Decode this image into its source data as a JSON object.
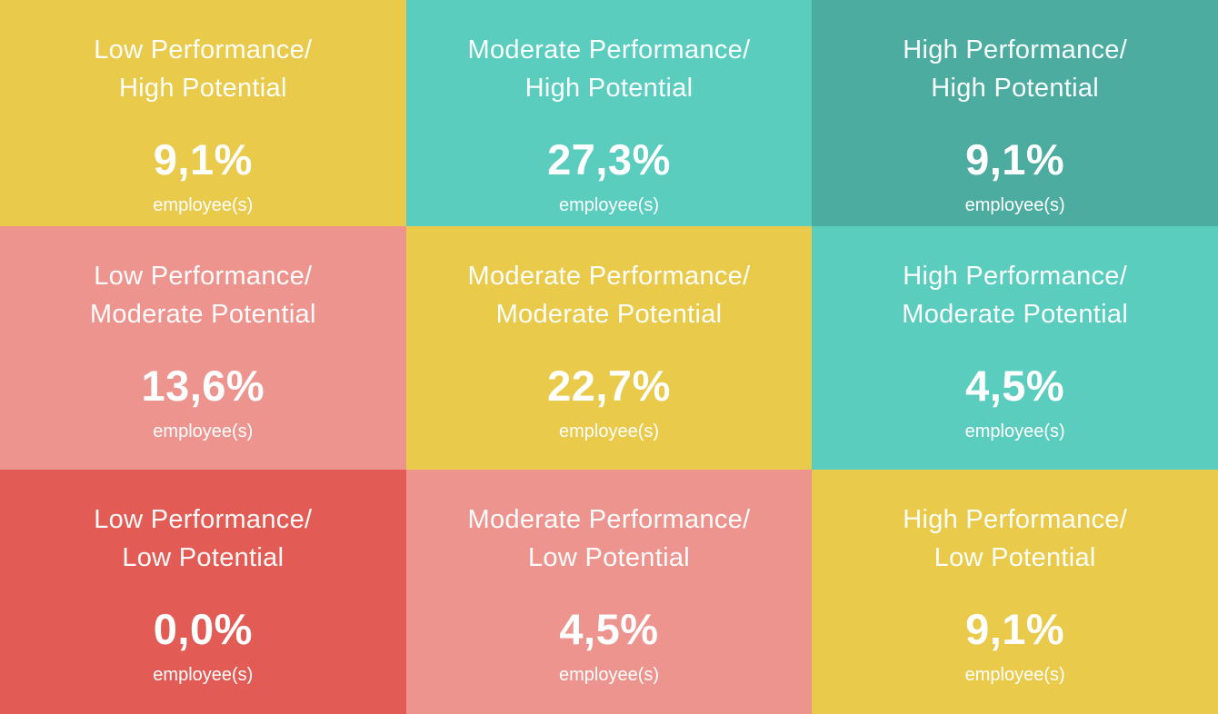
{
  "matrix": {
    "cells": [
      {
        "title_line1": "Low Performance/",
        "title_line2": "High Potential",
        "value": "9,1%",
        "unit": "employee(s)",
        "bg": "#E9CA4B"
      },
      {
        "title_line1": "Moderate Performance/",
        "title_line2": "High Potential",
        "value": "27,3%",
        "unit": "employee(s)",
        "bg": "#5BCDBF"
      },
      {
        "title_line1": "High Performance/",
        "title_line2": "High Potential",
        "value": "9,1%",
        "unit": "employee(s)",
        "bg": "#4DACA0"
      },
      {
        "title_line1": "Low Performance/",
        "title_line2": "Moderate Potential",
        "value": "13,6%",
        "unit": "employee(s)",
        "bg": "#ED948F"
      },
      {
        "title_line1": "Moderate Performance/",
        "title_line2": "Moderate Potential",
        "value": "22,7%",
        "unit": "employee(s)",
        "bg": "#E9CA4B"
      },
      {
        "title_line1": "High Performance/",
        "title_line2": "Moderate Potential",
        "value": "4,5%",
        "unit": "employee(s)",
        "bg": "#5BCDBF"
      },
      {
        "title_line1": "Low Performance/",
        "title_line2": "Low Potential",
        "value": "0,0%",
        "unit": "employee(s)",
        "bg": "#E25B54"
      },
      {
        "title_line1": "Moderate Performance/",
        "title_line2": "Low Potential",
        "value": "4,5%",
        "unit": "employee(s)",
        "bg": "#ED948F"
      },
      {
        "title_line1": "High Performance/",
        "title_line2": "Low Potential",
        "value": "9,1%",
        "unit": "employee(s)",
        "bg": "#E9CA4B"
      }
    ]
  },
  "chart_data": {
    "type": "heatmap",
    "x_categories": [
      "Low Performance",
      "Moderate Performance",
      "High Performance"
    ],
    "y_categories": [
      "High Potential",
      "Moderate Potential",
      "Low Potential"
    ],
    "values": [
      [
        9.1,
        27.3,
        9.1
      ],
      [
        13.6,
        22.7,
        4.5
      ],
      [
        0.0,
        4.5,
        9.1
      ]
    ],
    "value_unit": "% employee(s)",
    "value_labels": [
      [
        "9,1%",
        "27,3%",
        "9,1%"
      ],
      [
        "13,6%",
        "22,7%",
        "4,5%"
      ],
      [
        "0,0%",
        "4,5%",
        "9,1%"
      ]
    ],
    "cell_colors": [
      [
        "#E9CA4B",
        "#5BCDBF",
        "#4DACA0"
      ],
      [
        "#ED948F",
        "#E9CA4B",
        "#5BCDBF"
      ],
      [
        "#E25B54",
        "#ED948F",
        "#E9CA4B"
      ]
    ],
    "legend_position": "none",
    "grid": false
  }
}
